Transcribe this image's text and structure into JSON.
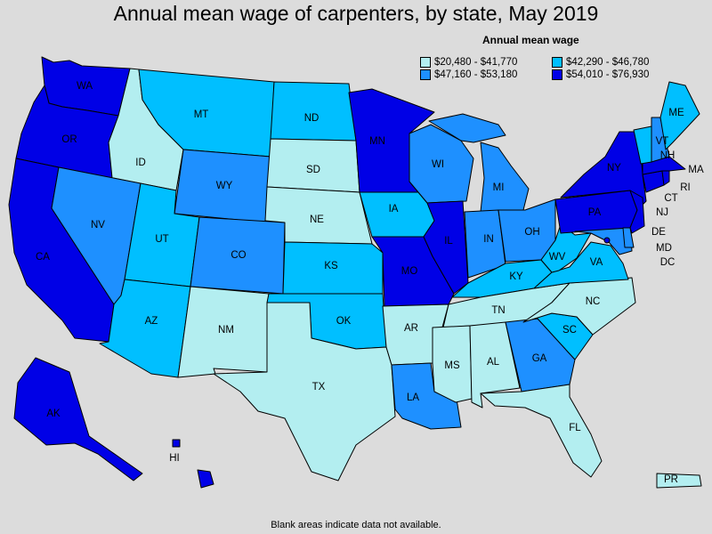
{
  "title": "Annual mean wage of carpenters, by state, May 2019",
  "legend": {
    "title": "Annual mean wage",
    "items": [
      {
        "range": "$20,480 - $41,770",
        "color": "#b3eef0"
      },
      {
        "range": "$42,290 - $46,780",
        "color": "#00bfff"
      },
      {
        "range": "$47,160 - $53,180",
        "color": "#1e90ff"
      },
      {
        "range": "$54,010 - $76,930",
        "color": "#0000e6"
      }
    ]
  },
  "footnote": "Blank areas indicate data not available.",
  "states": {
    "WA": {
      "label": "WA",
      "tier": 3
    },
    "OR": {
      "label": "OR",
      "tier": 3
    },
    "CA": {
      "label": "CA",
      "tier": 3
    },
    "ID": {
      "label": "ID",
      "tier": 0
    },
    "NV": {
      "label": "NV",
      "tier": 2
    },
    "MT": {
      "label": "MT",
      "tier": 1
    },
    "WY": {
      "label": "WY",
      "tier": 2
    },
    "UT": {
      "label": "UT",
      "tier": 1
    },
    "AZ": {
      "label": "AZ",
      "tier": 1
    },
    "CO": {
      "label": "CO",
      "tier": 2
    },
    "NM": {
      "label": "NM",
      "tier": 0
    },
    "ND": {
      "label": "ND",
      "tier": 1
    },
    "SD": {
      "label": "SD",
      "tier": 0
    },
    "NE": {
      "label": "NE",
      "tier": 0
    },
    "KS": {
      "label": "KS",
      "tier": 1
    },
    "OK": {
      "label": "OK",
      "tier": 1
    },
    "TX": {
      "label": "TX",
      "tier": 0
    },
    "MN": {
      "label": "MN",
      "tier": 3
    },
    "IA": {
      "label": "IA",
      "tier": 1
    },
    "MO": {
      "label": "MO",
      "tier": 3
    },
    "AR": {
      "label": "AR",
      "tier": 0
    },
    "LA": {
      "label": "LA",
      "tier": 2
    },
    "WI": {
      "label": "WI",
      "tier": 2
    },
    "IL": {
      "label": "IL",
      "tier": 3
    },
    "MI": {
      "label": "MI",
      "tier": 2
    },
    "IN": {
      "label": "IN",
      "tier": 2
    },
    "OH": {
      "label": "OH",
      "tier": 2
    },
    "KY": {
      "label": "KY",
      "tier": 1
    },
    "TN": {
      "label": "TN",
      "tier": 0
    },
    "MS": {
      "label": "MS",
      "tier": 0
    },
    "AL": {
      "label": "AL",
      "tier": 0
    },
    "GA": {
      "label": "GA",
      "tier": 2
    },
    "FL": {
      "label": "FL",
      "tier": 0
    },
    "SC": {
      "label": "SC",
      "tier": 1
    },
    "NC": {
      "label": "NC",
      "tier": 0
    },
    "VA": {
      "label": "VA",
      "tier": 1
    },
    "WV": {
      "label": "WV",
      "tier": 1
    },
    "PA": {
      "label": "PA",
      "tier": 3
    },
    "NY": {
      "label": "NY",
      "tier": 3
    },
    "ME": {
      "label": "ME",
      "tier": 1
    },
    "VT": {
      "label": "VT",
      "tier": 1
    },
    "NH": {
      "label": "NH",
      "tier": 2
    },
    "MA": {
      "label": "MA",
      "tier": 3
    },
    "RI": {
      "label": "RI",
      "tier": 3
    },
    "CT": {
      "label": "CT",
      "tier": 3
    },
    "NJ": {
      "label": "NJ",
      "tier": 3
    },
    "DE": {
      "label": "DE",
      "tier": 2
    },
    "MD": {
      "label": "MD",
      "tier": 2
    },
    "DC": {
      "label": "DC",
      "tier": 3
    },
    "AK": {
      "label": "AK",
      "tier": 3
    },
    "HI": {
      "label": "HI",
      "tier": 3
    },
    "PR": {
      "label": "PR",
      "tier": 0
    }
  }
}
